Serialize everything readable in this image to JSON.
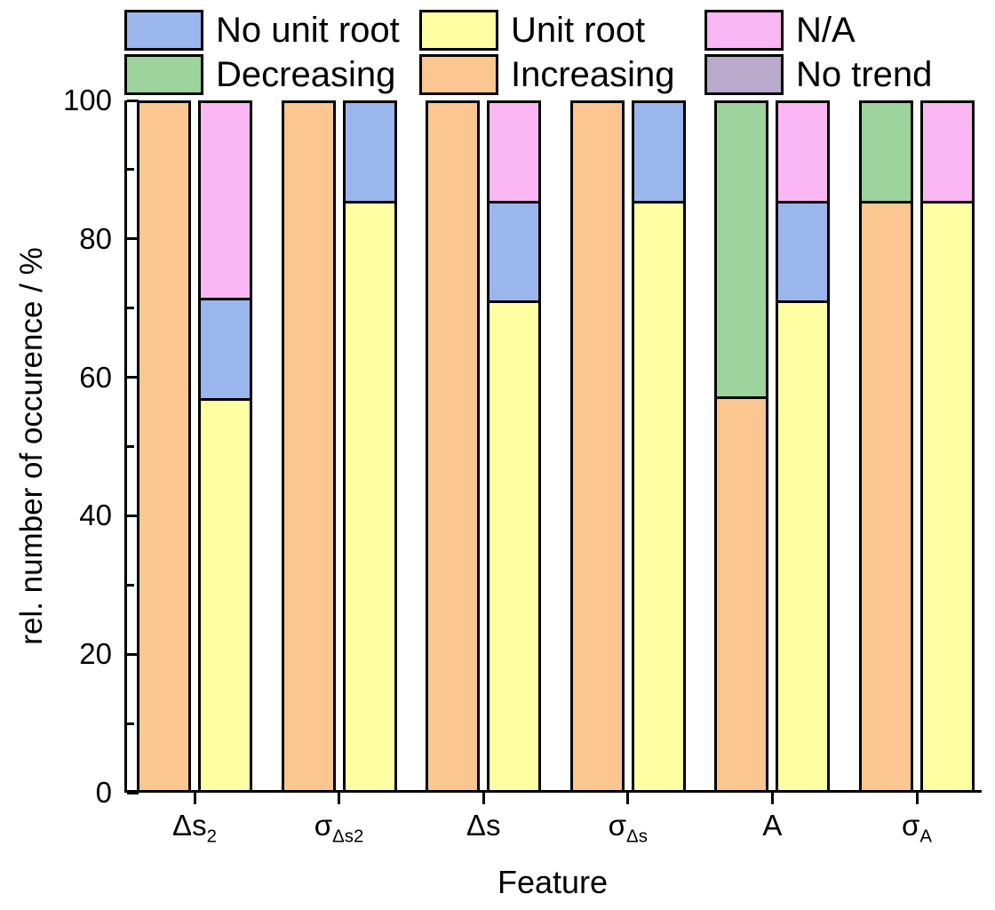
{
  "chart_data": {
    "type": "bar",
    "stacked": true,
    "title": "",
    "xlabel": "Feature",
    "ylabel": "rel. number of occurence / %",
    "ylim": [
      0,
      100
    ],
    "grid": false,
    "legend_position": "top",
    "y_axis": {
      "major_ticks": [
        0,
        20,
        40,
        60,
        80,
        100
      ],
      "minor_ticks": [
        10,
        30,
        50,
        70,
        90
      ]
    },
    "legend": [
      {
        "label": "No unit root",
        "color": "#9bb6ec"
      },
      {
        "label": "Unit root",
        "color": "#feffa2"
      },
      {
        "label": "N/A",
        "color": "#fbb6f4"
      },
      {
        "label": "Decreasing",
        "color": "#9dd39d"
      },
      {
        "label": "Increasing",
        "color": "#fbc690"
      },
      {
        "label": "No trend",
        "color": "#b9aacb"
      }
    ],
    "categories": [
      {
        "main": "Δs",
        "sub": "2"
      },
      {
        "main": "σ",
        "sub": "Δs2"
      },
      {
        "main": "Δs",
        "sub": ""
      },
      {
        "main": "σ",
        "sub": "Δs"
      },
      {
        "main": "A",
        "sub": ""
      },
      {
        "main": "σ",
        "sub": "A"
      }
    ],
    "bars": [
      {
        "category": "Δs2",
        "trend_bar": [
          {
            "name": "Increasing",
            "value": 100
          }
        ],
        "unit_root_bar": [
          {
            "name": "Unit root",
            "value": 57.1
          },
          {
            "name": "No unit root",
            "value": 14.3
          },
          {
            "name": "N/A",
            "value": 28.6
          }
        ]
      },
      {
        "category": "σ_Δs2",
        "trend_bar": [
          {
            "name": "Increasing",
            "value": 100
          }
        ],
        "unit_root_bar": [
          {
            "name": "Unit root",
            "value": 85.7
          },
          {
            "name": "No unit root",
            "value": 14.3
          }
        ]
      },
      {
        "category": "Δs",
        "trend_bar": [
          {
            "name": "Increasing",
            "value": 100
          }
        ],
        "unit_root_bar": [
          {
            "name": "Unit root",
            "value": 71.4
          },
          {
            "name": "No unit root",
            "value": 14.3
          },
          {
            "name": "N/A",
            "value": 14.3
          }
        ]
      },
      {
        "category": "σ_Δs",
        "trend_bar": [
          {
            "name": "Increasing",
            "value": 100
          }
        ],
        "unit_root_bar": [
          {
            "name": "Unit root",
            "value": 85.7
          },
          {
            "name": "No unit root",
            "value": 14.3
          }
        ]
      },
      {
        "category": "A",
        "trend_bar": [
          {
            "name": "Increasing",
            "value": 57.1
          },
          {
            "name": "Decreasing",
            "value": 42.9
          }
        ],
        "unit_root_bar": [
          {
            "name": "Unit root",
            "value": 71.4
          },
          {
            "name": "No unit root",
            "value": 14.3
          },
          {
            "name": "N/A",
            "value": 14.3
          }
        ]
      },
      {
        "category": "σ_A",
        "trend_bar": [
          {
            "name": "Increasing",
            "value": 85.7
          },
          {
            "name": "Decreasing",
            "value": 14.3
          }
        ],
        "unit_root_bar": [
          {
            "name": "Unit root",
            "value": 85.7
          },
          {
            "name": "N/A",
            "value": 14.3
          }
        ]
      }
    ]
  }
}
